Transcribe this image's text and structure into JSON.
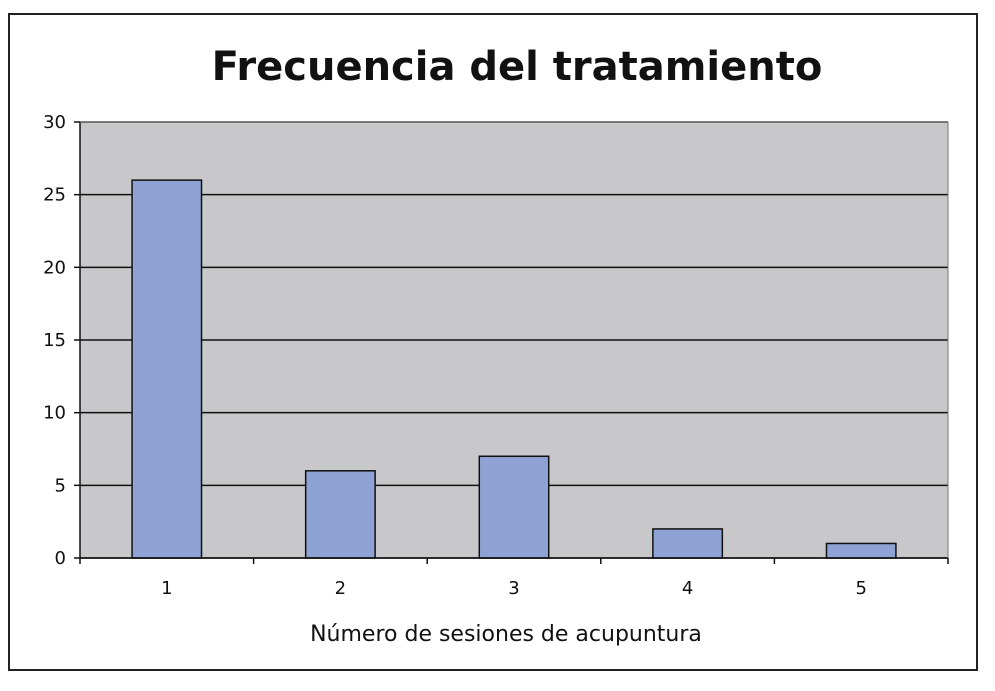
{
  "chart_data": {
    "type": "bar",
    "title": "Frecuencia del tratamiento",
    "xlabel": "Número de sesiones de acupuntura",
    "ylabel": "",
    "categories": [
      "1",
      "2",
      "3",
      "4",
      "5"
    ],
    "values": [
      26,
      6,
      7,
      2,
      1
    ],
    "ylim": [
      0,
      30
    ],
    "yticks": [
      "0",
      "5",
      "10",
      "15",
      "20",
      "25",
      "30"
    ],
    "grid": true,
    "legend": "none",
    "colors": {
      "bar": "#8fa2d4",
      "bar_edge": "#111111",
      "plot_bg": "#c8c8ca",
      "grid": "#111111",
      "frame": "#222222"
    }
  }
}
